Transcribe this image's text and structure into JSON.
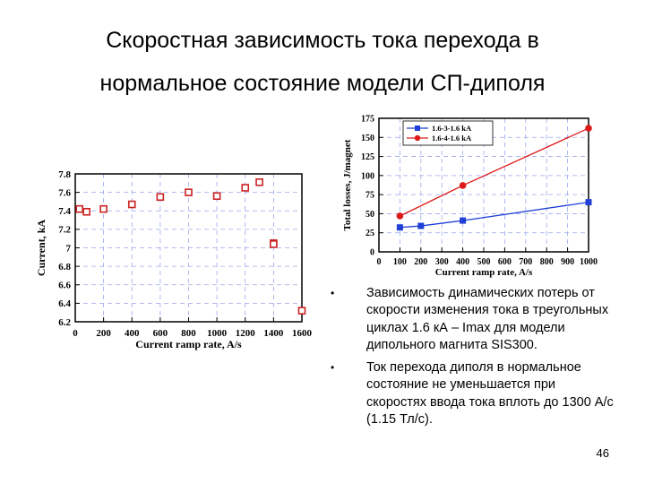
{
  "slide": {
    "title_line1": "Скоростная зависимость тока перехода в",
    "title_line2": "нормальное состояние модели СП-диполя",
    "page_number": "46",
    "bullets": [
      "Зависимость динамических потерь от скорости изменения тока в треугольных циклах 1.6 кА – Imax для модели дипольного магнита SIS300.",
      "Ток перехода диполя в нормальное состояние не уменьшается при скоростях ввода тока вплоть до 1300 А/с (1.15 Тл/с)."
    ]
  },
  "chart_data": [
    {
      "type": "scatter",
      "xlabel": "Current ramp rate, A/s",
      "ylabel": "Current, kA",
      "xlim": [
        0,
        1600
      ],
      "ylim": [
        6.2,
        7.8
      ],
      "xticks": [
        "0",
        "200",
        "400",
        "600",
        "800",
        "1000",
        "1200",
        "1400",
        "1600"
      ],
      "yticks": [
        "6.2",
        "6.4",
        "6.6",
        "6.8",
        "7",
        "7.2",
        "7.4",
        "7.6",
        "7.8"
      ],
      "grid": true,
      "marker_color": "#cc2222",
      "points": [
        {
          "x": 30,
          "y": 7.42
        },
        {
          "x": 80,
          "y": 7.39
        },
        {
          "x": 200,
          "y": 7.42
        },
        {
          "x": 400,
          "y": 7.47
        },
        {
          "x": 600,
          "y": 7.55
        },
        {
          "x": 800,
          "y": 7.6
        },
        {
          "x": 1000,
          "y": 7.56
        },
        {
          "x": 1200,
          "y": 7.65
        },
        {
          "x": 1300,
          "y": 7.71
        },
        {
          "x": 1400,
          "y": 7.05
        },
        {
          "x": 1400,
          "y": 7.04
        },
        {
          "x": 1600,
          "y": 6.32
        }
      ]
    },
    {
      "type": "line",
      "xlabel": "Current ramp rate, A/s",
      "ylabel": "Total losses, J/magnet",
      "xlim": [
        0,
        1000
      ],
      "ylim": [
        0,
        175
      ],
      "xticks": [
        "0",
        "100",
        "200",
        "300",
        "400",
        "500",
        "600",
        "700",
        "800",
        "900",
        "1000"
      ],
      "yticks": [
        "0",
        "25",
        "50",
        "75",
        "100",
        "125",
        "150",
        "175"
      ],
      "grid": true,
      "legend": "top-right",
      "series": [
        {
          "name": "1.6-3-1.6 kA",
          "color": "#1f3fd6",
          "marker": "square",
          "x": [
            100,
            200,
            400,
            1000
          ],
          "values": [
            32,
            34,
            41,
            65
          ]
        },
        {
          "name": "1.6-4-1.6 kA",
          "color": "#dd1a1a",
          "marker": "circle",
          "x": [
            100,
            400,
            1000
          ],
          "values": [
            47,
            87,
            162
          ]
        }
      ]
    }
  ]
}
